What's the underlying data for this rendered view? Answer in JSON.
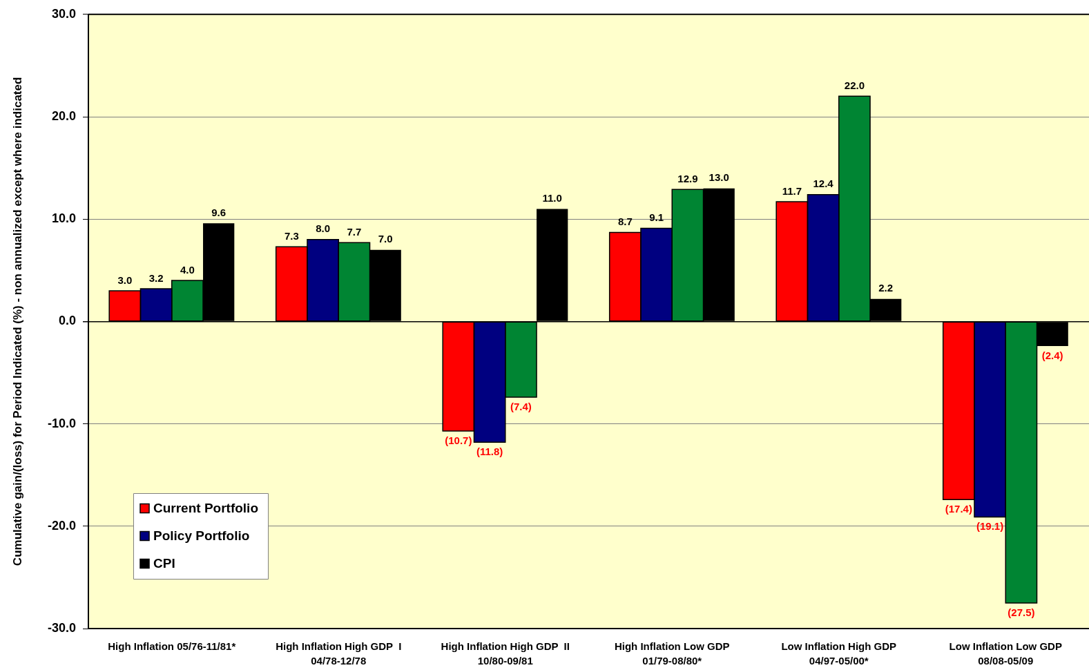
{
  "chart_data": {
    "type": "bar",
    "ylabel": "Cumulative gain/(loss) for Period Indicated (%) - non annualized except where indicated",
    "categories": [
      "High Inflation 05/76-11/81*",
      "High Inflation High GDP  I\n04/78-12/78",
      "High Inflation High GDP  II\n10/80-09/81",
      "High Inflation Low GDP\n01/79-08/80*",
      "Low Inflation High GDP\n04/97-05/00*",
      "Low Inflation Low GDP\n08/08-05/09"
    ],
    "series": [
      {
        "name": "Current Portfolio",
        "color": "#ff0000",
        "values": [
          3.0,
          7.3,
          -10.7,
          8.7,
          11.7,
          -17.4
        ],
        "value_labels": [
          "3.0",
          "7.3",
          "(10.7)",
          "8.7",
          "11.7",
          "(17.4)"
        ]
      },
      {
        "name": "Policy Portfolio",
        "color": "#000080",
        "values": [
          3.2,
          8.0,
          -11.8,
          9.1,
          12.4,
          -19.1
        ],
        "value_labels": [
          "3.2",
          "8.0",
          "(11.8)",
          "9.1",
          "12.4",
          "(19.1)"
        ]
      },
      {
        "color": "#008533",
        "values": [
          4.0,
          7.7,
          -7.4,
          12.9,
          22.0,
          -27.5
        ],
        "value_labels": [
          "4.0",
          "7.7",
          "(7.4)",
          "12.9",
          "22.0",
          "(27.5)"
        ]
      },
      {
        "name": "CPI",
        "color": "#000000",
        "values": [
          9.6,
          7.0,
          11.0,
          13.0,
          2.2,
          -2.4
        ],
        "value_labels": [
          "9.6",
          "7.0",
          "11.0",
          "13.0",
          "2.2",
          "(2.4)"
        ]
      }
    ],
    "ylim": [
      -30,
      30
    ],
    "yticks": [
      {
        "value": -30,
        "label": "-30.0"
      },
      {
        "value": -20,
        "label": "-20.0"
      },
      {
        "value": -10,
        "label": "-10.0"
      },
      {
        "value": 0,
        "label": "0.0"
      },
      {
        "value": 10,
        "label": "10.0"
      },
      {
        "value": 20,
        "label": "20.0"
      },
      {
        "value": 30,
        "label": "30.0"
      }
    ],
    "grid": "y",
    "legend": "bottom left"
  }
}
